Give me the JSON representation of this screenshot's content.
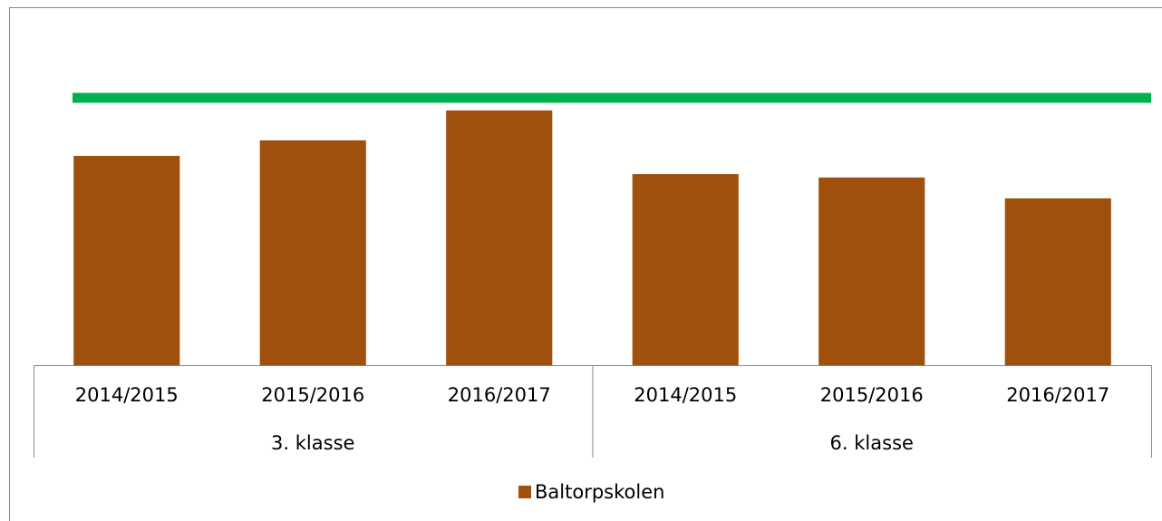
{
  "chart_data": {
    "type": "bar",
    "groups": [
      {
        "name": "3. klasse",
        "categories": [
          "2014/2015",
          "2015/2016",
          "2016/2017"
        ]
      },
      {
        "name": "6. klasse",
        "categories": [
          "2014/2015",
          "2015/2016",
          "2016/2017"
        ]
      }
    ],
    "series": [
      {
        "name": "Baltorpskolen",
        "color": "#a0500d",
        "values": [
          78.3,
          84.1,
          95.3,
          71.5,
          70.2,
          62.4
        ]
      }
    ],
    "reference_line": {
      "value": 100,
      "color": "#00b050"
    },
    "ylim": [
      0,
      110
    ],
    "legend": "bottom"
  }
}
